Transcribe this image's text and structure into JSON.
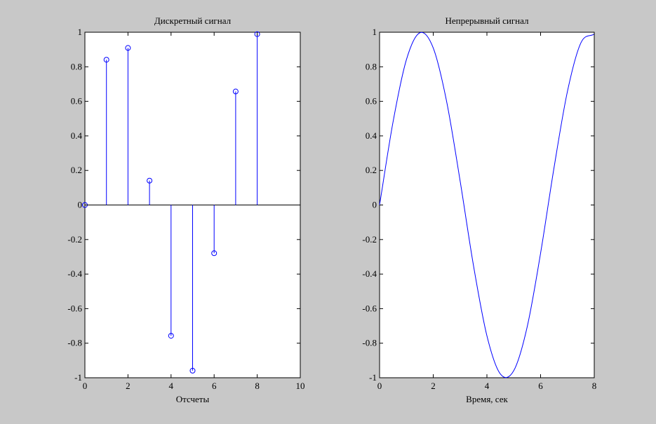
{
  "colors": {
    "figure_bg": "#c8c8c8",
    "axes_bg": "#ffffff",
    "series": "#0000ff",
    "baseline": "#000000"
  },
  "chart_data": [
    {
      "type": "stem",
      "title": "Дискретный сигнал",
      "xlabel": "Отсчеты",
      "ylabel": "",
      "xlim": [
        0,
        10
      ],
      "ylim": [
        -1,
        1
      ],
      "xticks": [
        0,
        2,
        4,
        6,
        8,
        10
      ],
      "yticks": [
        -1,
        -0.8,
        -0.6,
        -0.4,
        -0.2,
        0,
        0.2,
        0.4,
        0.6,
        0.8,
        1
      ],
      "grid": false,
      "legend": "none",
      "marker": "circle",
      "series": [
        {
          "x": [
            0,
            1,
            2,
            3,
            4,
            5,
            6,
            7,
            8
          ],
          "y": [
            0,
            0.841,
            0.909,
            0.141,
            -0.757,
            -0.959,
            -0.279,
            0.657,
            0.989
          ]
        }
      ]
    },
    {
      "type": "line",
      "title": "Непрерывный сигнал",
      "xlabel": "Время,  сек",
      "ylabel": "",
      "xlim": [
        0,
        8
      ],
      "ylim": [
        -1,
        1
      ],
      "xticks": [
        0,
        2,
        4,
        6,
        8
      ],
      "yticks": [
        -1,
        -0.8,
        -0.6,
        -0.4,
        -0.2,
        0,
        0.2,
        0.4,
        0.6,
        0.8,
        1
      ],
      "grid": false,
      "legend": "none",
      "series": [
        {
          "x": [
            0,
            0.5,
            1,
            1.5,
            2,
            2.5,
            3,
            3.5,
            4,
            4.5,
            5,
            5.5,
            6,
            6.5,
            7,
            7.5,
            8
          ],
          "y": [
            0,
            0.479,
            0.841,
            0.997,
            0.909,
            0.598,
            0.141,
            -0.351,
            -0.757,
            -0.978,
            -0.959,
            -0.706,
            -0.279,
            0.215,
            0.657,
            0.938,
            0.989
          ]
        }
      ]
    }
  ]
}
